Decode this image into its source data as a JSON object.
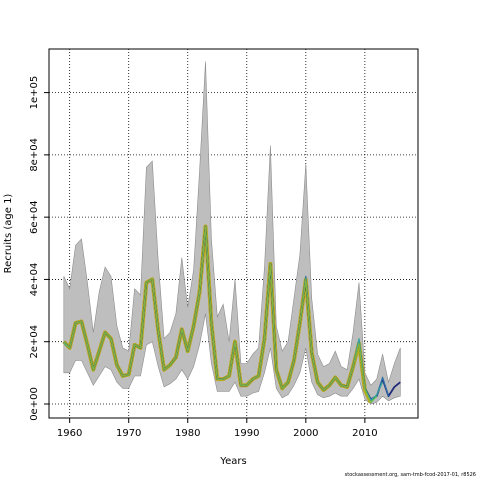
{
  "footer": "stockassessment.org, sam-tmb-fcod-2017-01, r8526",
  "chart_data": {
    "type": "line",
    "title": "",
    "xlabel": "Years",
    "ylabel": "Recruits (age 1)",
    "xlim": [
      1956.5,
      2019
    ],
    "ylim": [
      -4500,
      114000
    ],
    "x_ticks": [
      1960,
      1970,
      1980,
      1990,
      2000,
      2010
    ],
    "y_ticks": [
      0,
      20000,
      40000,
      60000,
      80000,
      100000
    ],
    "y_tick_labels": [
      "0e+00",
      "2e+04",
      "4e+04",
      "6e+04",
      "8e+04",
      "1e+05"
    ],
    "grid": true,
    "grid_style": "dotted",
    "colors": {
      "band": "#bebebe",
      "band_edge": "#8c8c8c",
      "estimate": "#1f2a7a",
      "retro_1": "#2c6fa8",
      "retro_2": "#3aa8a0",
      "retro_3": "#5cc24a",
      "retro_4": "#9bb52a",
      "highlight": "#b8aa22"
    },
    "years": [
      1959,
      1960,
      1961,
      1962,
      1963,
      1964,
      1965,
      1966,
      1967,
      1968,
      1969,
      1970,
      1971,
      1972,
      1973,
      1974,
      1975,
      1976,
      1977,
      1978,
      1979,
      1980,
      1981,
      1982,
      1983,
      1984,
      1985,
      1986,
      1987,
      1988,
      1989,
      1990,
      1991,
      1992,
      1993,
      1994,
      1995,
      1996,
      1997,
      1998,
      1999,
      2000,
      2001,
      2002,
      2003,
      2004,
      2005,
      2006,
      2007,
      2008,
      2009,
      2010,
      2011,
      2012,
      2013,
      2014,
      2015,
      2016
    ],
    "upper": [
      41000,
      37000,
      51000,
      53000,
      39000,
      23000,
      36000,
      44000,
      41000,
      25000,
      18000,
      17000,
      37000,
      35000,
      76000,
      78000,
      46000,
      21000,
      23000,
      29000,
      47000,
      31000,
      43000,
      75000,
      110000,
      53000,
      28000,
      32000,
      20000,
      40000,
      13000,
      13000,
      16000,
      18000,
      44000,
      83000,
      25000,
      17000,
      20000,
      34000,
      48000,
      77000,
      34000,
      16000,
      12000,
      13000,
      17000,
      12000,
      11000,
      23000,
      39000,
      10000,
      6000,
      8000,
      16000,
      7000,
      13000,
      18000
    ],
    "lower": [
      10000,
      10000,
      14000,
      14000,
      10000,
      6000,
      9000,
      12000,
      11000,
      7000,
      5000,
      5000,
      9000,
      9000,
      19000,
      20000,
      12000,
      5500,
      6500,
      8000,
      11000,
      8000,
      12000,
      19000,
      29000,
      13000,
      4000,
      4000,
      4000,
      7000,
      2500,
      2500,
      3500,
      4000,
      10000,
      18000,
      5000,
      2000,
      3000,
      6000,
      10000,
      18000,
      7000,
      3000,
      2000,
      2500,
      3500,
      2500,
      2500,
      5000,
      8000,
      1500,
      0,
      500,
      2500,
      1000,
      2000,
      2500
    ],
    "series": [
      {
        "values": [
          20000,
          18000,
          26000,
          26500,
          19000,
          11000,
          17000,
          23000,
          21000,
          12500,
          9000,
          9500,
          19000,
          18000,
          39000,
          40000,
          23500,
          11000,
          12500,
          15000,
          24000,
          17000,
          25000,
          36000,
          57000,
          26000,
          8000,
          8000,
          9000,
          20000,
          6000,
          6000,
          8000,
          9000,
          21000,
          45000,
          11000,
          5000,
          7000,
          14000,
          26000,
          40000,
          16500,
          7000,
          4500,
          6000,
          8500,
          6000,
          5500,
          12000,
          20000,
          5000,
          1500,
          2500,
          8000,
          2500,
          5500,
          7000
        ]
      },
      {
        "values": [
          20000,
          18000,
          26000,
          26500,
          19000,
          11000,
          17000,
          23000,
          21000,
          12500,
          9000,
          9500,
          19000,
          18000,
          39000,
          40000,
          23500,
          11000,
          12500,
          15000,
          24000,
          17000,
          25000,
          36000,
          57000,
          26000,
          8000,
          8000,
          9000,
          20000,
          6000,
          6000,
          8000,
          9000,
          21000,
          45000,
          11000,
          5000,
          7000,
          14000,
          26000,
          41000,
          16500,
          7000,
          4500,
          6000,
          8500,
          6000,
          5500,
          12000,
          20500,
          5000,
          1500,
          2500,
          8500,
          2500,
          null,
          null
        ]
      },
      {
        "values": [
          19500,
          18000,
          26000,
          26500,
          19000,
          11000,
          17000,
          23000,
          21000,
          12500,
          9000,
          9500,
          19000,
          18000,
          39000,
          40000,
          23500,
          11000,
          12500,
          15000,
          24000,
          17000,
          25000,
          36000,
          57000,
          26000,
          8000,
          8000,
          9000,
          20000,
          6000,
          6000,
          8000,
          9000,
          21000,
          45000,
          11000,
          5000,
          7000,
          14000,
          26000,
          40500,
          16500,
          7000,
          4500,
          6000,
          8500,
          6000,
          5500,
          12000,
          21000,
          5000,
          1000,
          3000,
          7000,
          null,
          null,
          null
        ]
      },
      {
        "values": [
          20000,
          18000,
          26000,
          26500,
          19000,
          11000,
          17000,
          23000,
          21000,
          12500,
          9000,
          9500,
          19000,
          18000,
          39000,
          40000,
          23500,
          11000,
          12500,
          15000,
          24000,
          17000,
          25000,
          36000,
          57000,
          26000,
          8000,
          8000,
          9000,
          20000,
          6000,
          6000,
          8000,
          9000,
          21000,
          45000,
          11000,
          5000,
          7000,
          14000,
          26000,
          40000,
          16500,
          7000,
          4500,
          6000,
          8500,
          6000,
          5500,
          12000,
          19500,
          5000,
          500,
          2500,
          null,
          null,
          null,
          null
        ]
      },
      {
        "values": [
          20000,
          18000,
          26000,
          26500,
          19000,
          11000,
          17000,
          23000,
          21000,
          12500,
          9000,
          9500,
          19000,
          18000,
          39000,
          40000,
          23500,
          11000,
          12500,
          15000,
          24000,
          17000,
          25000,
          36000,
          57000,
          26000,
          8000,
          8000,
          9000,
          20000,
          6000,
          6000,
          8000,
          9000,
          21000,
          45000,
          11000,
          5000,
          7000,
          14000,
          26000,
          40000,
          16500,
          7000,
          4500,
          6000,
          8500,
          6000,
          5500,
          12000,
          19500,
          4500,
          500,
          null,
          null,
          null,
          null,
          null
        ]
      }
    ],
    "highlight_values": [
      20000,
      18000,
      26000,
      26500,
      19000,
      11000,
      17000,
      23000,
      21000,
      12500,
      9000,
      9500,
      19000,
      18000,
      39000,
      40000,
      23500,
      11000,
      12500,
      15000,
      24000,
      17000,
      25000,
      36000,
      57000,
      26000,
      8000,
      8000,
      9000,
      20000,
      6000,
      6000,
      8000,
      9000,
      21000,
      45000,
      11000,
      5000,
      7000,
      14000,
      26000,
      40000,
      16500,
      7000,
      4500,
      6000,
      8500,
      6000,
      5500,
      12000,
      19500,
      4500,
      500,
      null,
      null,
      null,
      null,
      null
    ]
  }
}
